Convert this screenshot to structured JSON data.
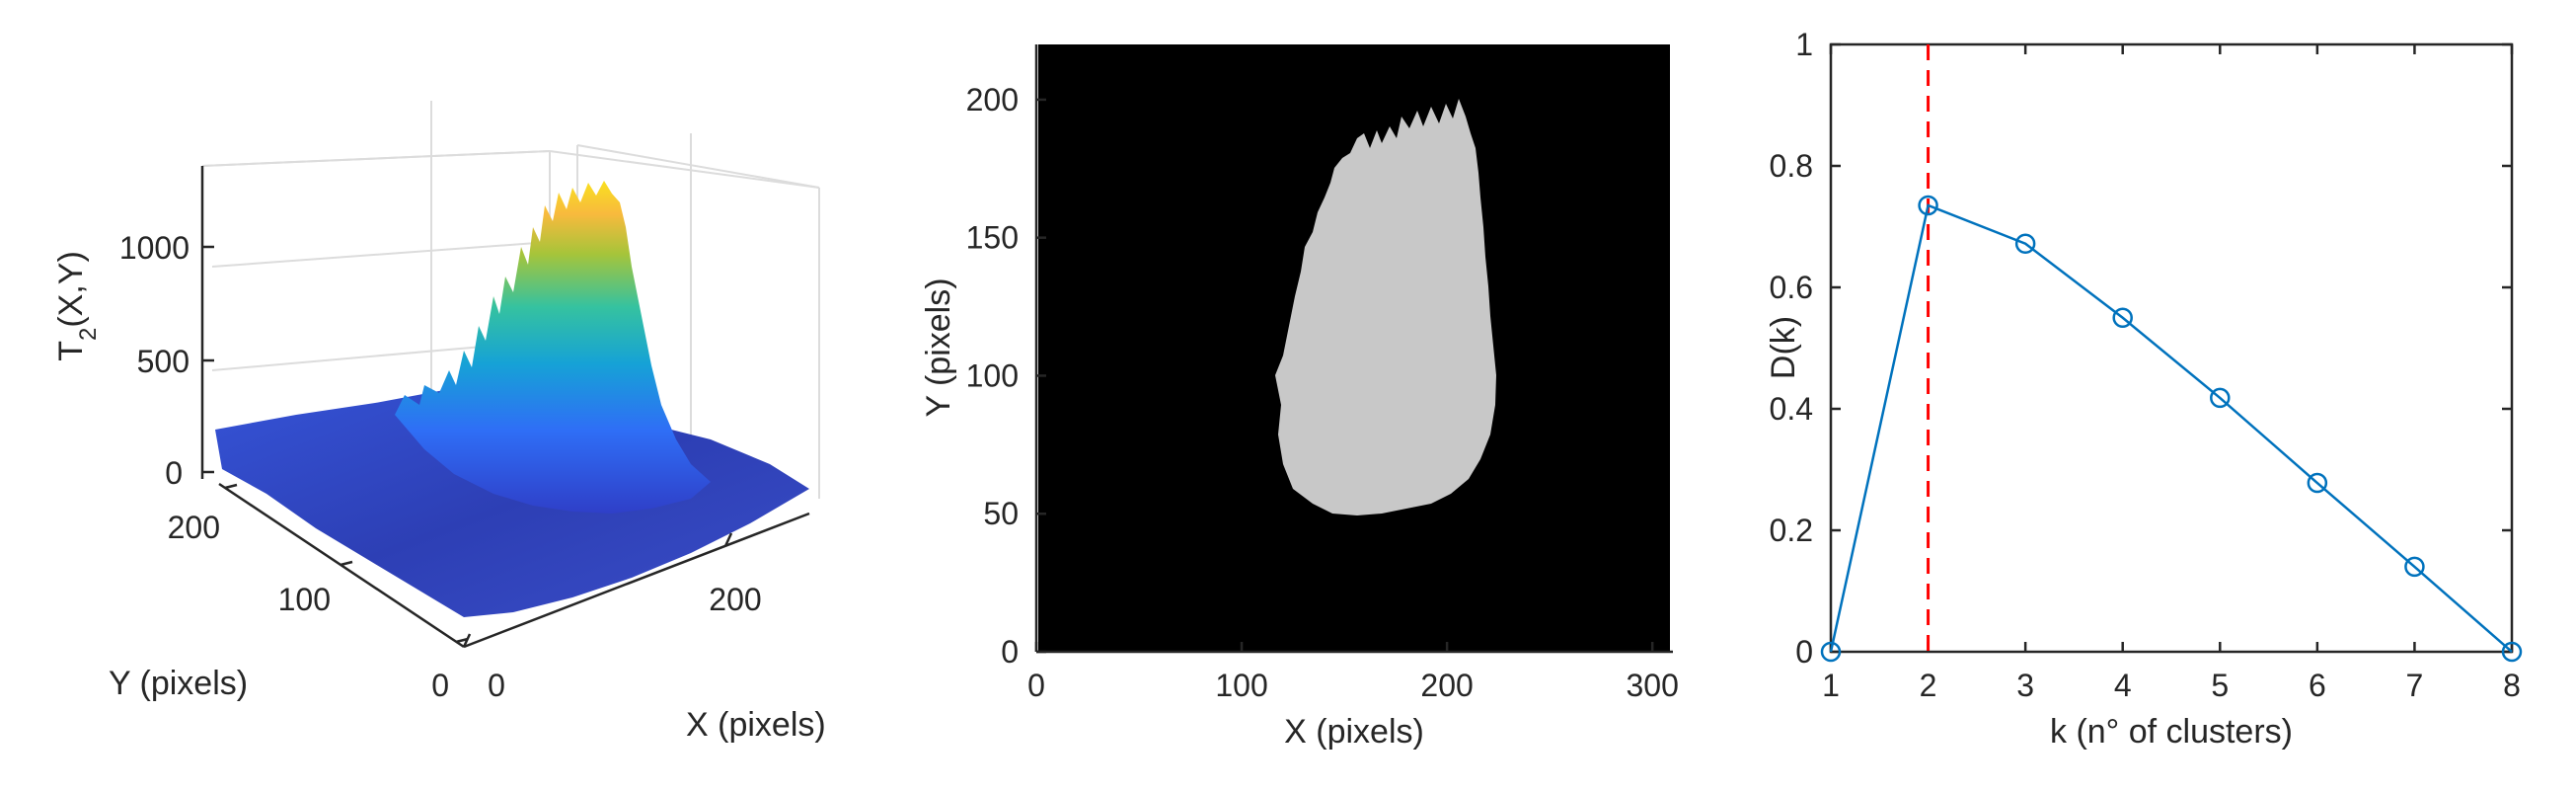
{
  "chart_data": [
    {
      "type": "surface",
      "zlabel_main": "T",
      "zlabel_sub": "2",
      "zlabel_rest": "(X,Y)",
      "xlabel": "X (pixels)",
      "ylabel": "Y (pixels)",
      "x_ticks": [
        "0",
        "200"
      ],
      "y_ticks": [
        "0",
        "100",
        "200"
      ],
      "z_ticks": [
        "0",
        "500",
        "1000"
      ],
      "zlim": [
        0,
        1250
      ],
      "colormap": [
        "#3e26a8",
        "#2f6ef6",
        "#16a2d6",
        "#35c2a0",
        "#a6c43a",
        "#f8ba3d",
        "#f9fb15"
      ]
    },
    {
      "type": "heatmap",
      "xlabel": "X (pixels)",
      "ylabel": "Y (pixels)",
      "x_ticks": [
        0,
        100,
        200,
        300
      ],
      "y_ticks": [
        0,
        50,
        100,
        150,
        200
      ],
      "xlim": [
        0,
        310
      ],
      "ylim": [
        0,
        220
      ],
      "background": "#000000",
      "foreground": "#c8c8c8"
    },
    {
      "type": "line",
      "xlabel": "k (n° of clusters)",
      "ylabel": "D(k)",
      "x": [
        1,
        2,
        3,
        4,
        5,
        6,
        7,
        8
      ],
      "y": [
        0.0,
        0.735,
        0.672,
        0.55,
        0.418,
        0.278,
        0.14,
        0.0
      ],
      "xlim": [
        1,
        8
      ],
      "ylim": [
        0,
        1
      ],
      "x_ticks": [
        1,
        2,
        3,
        4,
        5,
        6,
        7,
        8
      ],
      "y_ticks": [
        0,
        0.2,
        0.4,
        0.6,
        0.8,
        1
      ],
      "y_tick_labels": [
        "0",
        "0.2",
        "0.4",
        "0.6",
        "0.8",
        "1"
      ],
      "marker": "circle",
      "line_color": "#0072bd",
      "vline_x": 2,
      "vline_color": "#ff0000"
    }
  ]
}
